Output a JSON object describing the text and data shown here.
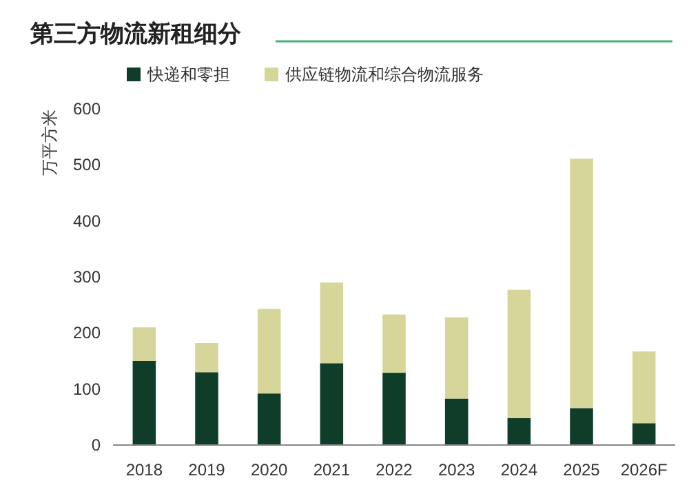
{
  "chart_data": {
    "type": "bar",
    "title": "第三方物流新租细分",
    "ylabel": "万平方米",
    "stacked": true,
    "categories": [
      "2018",
      "2019",
      "2020",
      "2021",
      "2022",
      "2023",
      "2024",
      "2025",
      "2026F"
    ],
    "series": [
      {
        "name": "快递和零担",
        "color": "#0f3d2a",
        "values": [
          150,
          130,
          92,
          146,
          129,
          83,
          48,
          66,
          39
        ]
      },
      {
        "name": "供应链物流和综合物流服务",
        "color": "#d6d69a",
        "values": [
          60,
          52,
          151,
          144,
          104,
          145,
          229,
          445,
          128
        ]
      }
    ],
    "ylim": [
      0,
      600
    ],
    "yticks": [
      0,
      100,
      200,
      300,
      400,
      500,
      600
    ],
    "grid": false,
    "legend": "top left"
  }
}
